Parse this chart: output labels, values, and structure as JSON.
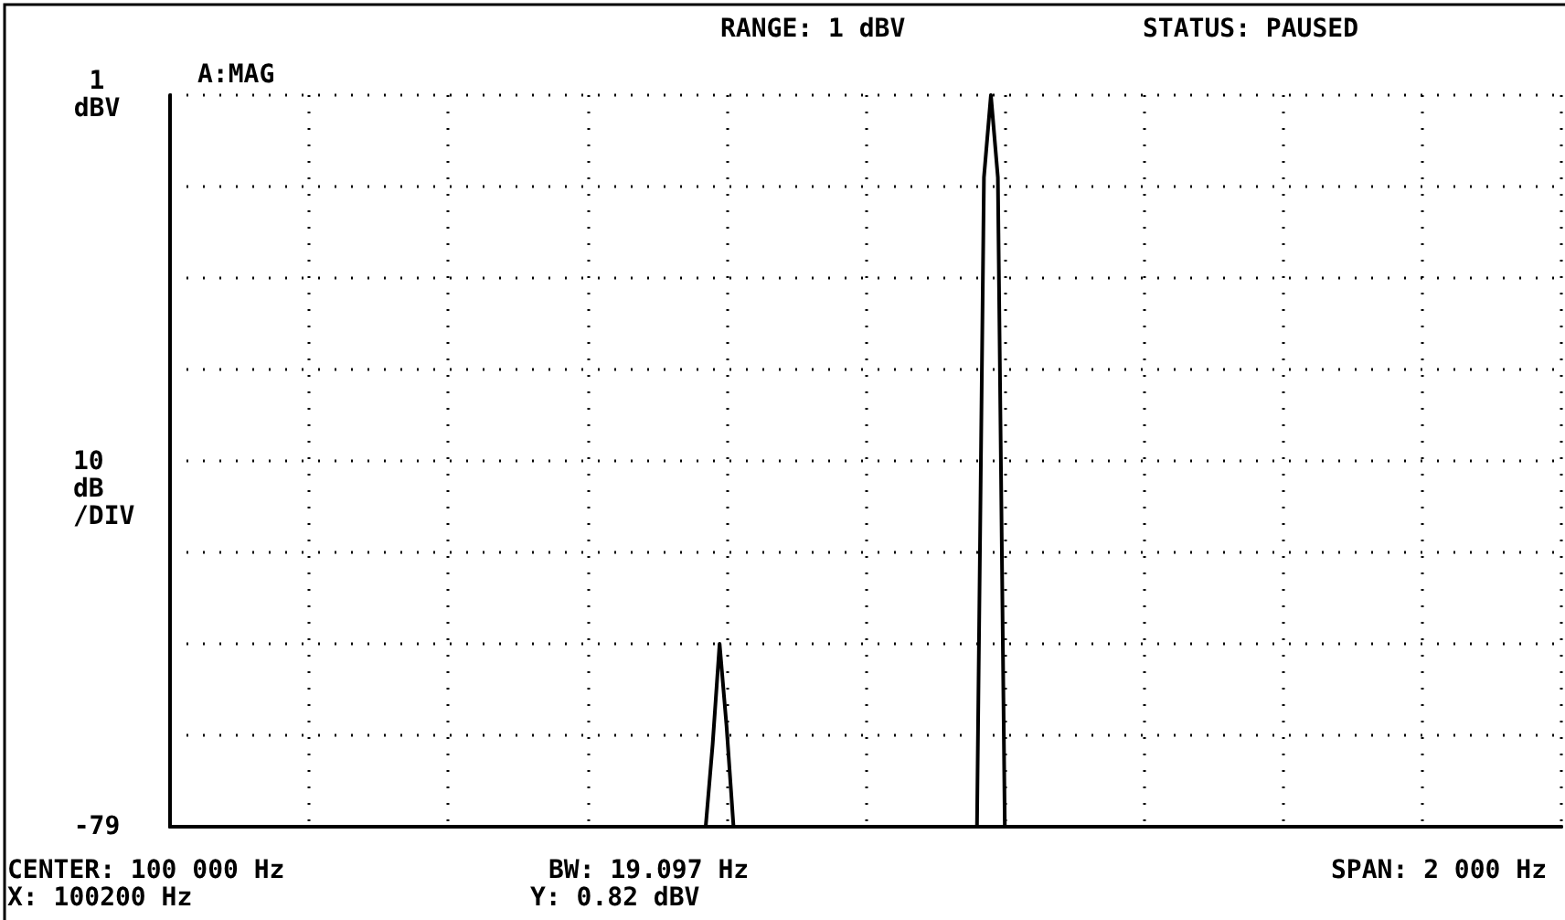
{
  "chart_data": {
    "type": "line",
    "title": "RANGE: 1 dBV",
    "subtitle": "STATUS: PAUSED",
    "ylabel": "10 dB /DIV",
    "annotations": [
      "A:MAG",
      "CENTER: 100 000 Hz",
      "BW: 19.097 Hz",
      "SPAN: 2 000 Hz",
      "X: 100200 Hz",
      "Y: 0.82 dBV"
    ],
    "categories": [
      null,
      null,
      null,
      null,
      null,
      null,
      null,
      null,
      null,
      null,
      null,
      null,
      null,
      null,
      null,
      null,
      null,
      null,
      null,
      null,
      null,
      null,
      null,
      null,
      null,
      null,
      null,
      null,
      null,
      null,
      null,
      null,
      null,
      null,
      null,
      null,
      null,
      null,
      null,
      null,
      null,
      null,
      null,
      null,
      null,
      null,
      null,
      null,
      null,
      null,
      null,
      null,
      null,
      null,
      null,
      null,
      null,
      null,
      null,
      null,
      null,
      null,
      null,
      null,
      null,
      null,
      null,
      null,
      null,
      null,
      null,
      null,
      null,
      null,
      null,
      null,
      null,
      null,
      null,
      null,
      null,
      null,
      null,
      null,
      null,
      null,
      null,
      null,
      null,
      null,
      null,
      null,
      null,
      null,
      null,
      null,
      null,
      null,
      null,
      null,
      null,
      null,
      null,
      null,
      null,
      null,
      null,
      null,
      null,
      null,
      null,
      null,
      null,
      null,
      null,
      null,
      null,
      null,
      null,
      null,
      null,
      null,
      null,
      null,
      null,
      null,
      null,
      null,
      null,
      null,
      null,
      null,
      null,
      null,
      null,
      null,
      null,
      null,
      null,
      null,
      null,
      null,
      null,
      null,
      null,
      null,
      null,
      null,
      null,
      null,
      null,
      null,
      null,
      null,
      null,
      null,
      null,
      null,
      null,
      null,
      null,
      null,
      null,
      null,
      null,
      null,
      null,
      null,
      null,
      null,
      null,
      null,
      null,
      null,
      null,
      null,
      null,
      null,
      null,
      null,
      null,
      null,
      null,
      null,
      null,
      null,
      null,
      null,
      null,
      null,
      null,
      null,
      null,
      null,
      null,
      null,
      null,
      null,
      null,
      null,
      null
    ],
    "series": [
      {
        "color": "#000000",
        "values": [
          -79,
          -79,
          -79,
          -79,
          -79,
          -79,
          -79,
          -79,
          -79,
          -79,
          -79,
          -79,
          -79,
          -79,
          -79,
          -79,
          -79,
          -79,
          -79,
          -79,
          -79,
          -79,
          -79,
          -79,
          -79,
          -79,
          -79,
          -79,
          -79,
          -79,
          -79,
          -79,
          -79,
          -79,
          -79,
          -79,
          -79,
          -79,
          -79,
          -79,
          -79,
          -79,
          -79,
          -79,
          -79,
          -79,
          -79,
          -79,
          -79,
          -79,
          -79,
          -79,
          -79,
          -79,
          -79,
          -79,
          -79,
          -79,
          -79,
          -79,
          -79,
          -79,
          -79,
          -79,
          -79,
          -79,
          -79,
          -79,
          -79,
          -79,
          -79,
          -79,
          -79,
          -79,
          -79,
          -79,
          -79,
          -79,
          -70,
          -59,
          -68,
          -79,
          -79,
          -79,
          -79,
          -79,
          -79,
          -79,
          -79,
          -79,
          -79,
          -79,
          -79,
          -79,
          -79,
          -79,
          -79,
          -79,
          -79,
          -79,
          -79,
          -79,
          -79,
          -79,
          -79,
          -79,
          -79,
          -79,
          -79,
          -79,
          -79,
          -79,
          -79,
          -79,
          -79,
          -79,
          -79,
          -8,
          1,
          -8,
          -79,
          -79,
          -79,
          -79,
          -79,
          -79,
          -79,
          -79,
          -79,
          -79,
          -79,
          -79,
          -79,
          -79,
          -79,
          -79,
          -79,
          -79,
          -79,
          -79,
          -79,
          -79,
          -79,
          -79,
          -79,
          -79,
          -79,
          -79,
          -79,
          -79,
          -79,
          -79,
          -79,
          -79,
          -79,
          -79,
          -79,
          -79,
          -79,
          -79,
          -79,
          -79,
          -79,
          -79,
          -79,
          -79,
          -79,
          -79,
          -79,
          -79,
          -79,
          -79,
          -79,
          -79,
          -79,
          -79,
          -79,
          -79,
          -79,
          -79,
          -79,
          -79,
          -79,
          -79,
          -79,
          -79,
          -79,
          -79,
          -79,
          -79,
          -79,
          -79,
          -79,
          -79,
          -79,
          -79,
          -79,
          -79,
          -79,
          -79,
          -79
        ]
      }
    ],
    "ylim": [
      -79,
      1
    ],
    "yticks": [
      {
        "value": -79,
        "label": "-79"
      },
      {
        "value": -69,
        "label": null
      },
      {
        "value": -59,
        "label": null
      },
      {
        "value": -49,
        "label": null
      },
      {
        "value": -39,
        "label": null
      },
      {
        "value": -29,
        "label": null
      },
      {
        "value": -19,
        "label": null
      },
      {
        "value": -9,
        "label": null
      },
      {
        "value": 1,
        "label": "1 dBV"
      }
    ],
    "tick_labels": "y",
    "grid": true,
    "line_style": "solid"
  }
}
